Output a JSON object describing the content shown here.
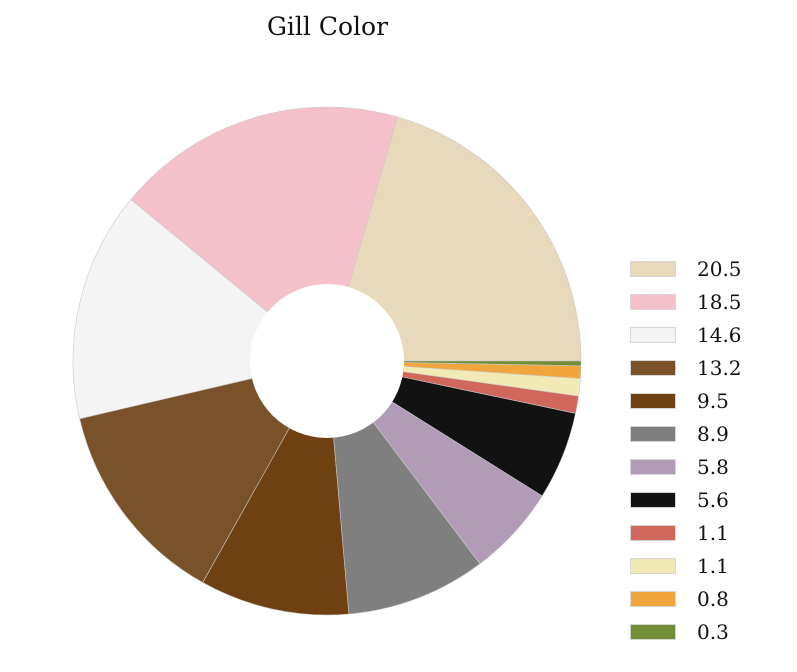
{
  "chart_data": {
    "type": "pie",
    "title": "Gill Color",
    "style": "donut",
    "start_angle_deg": 0,
    "direction": "counterclockwise",
    "legend_position": "right",
    "slices": [
      {
        "label": "20.5",
        "value": 20.5,
        "color": "#e8d9bd"
      },
      {
        "label": "18.5",
        "value": 18.5,
        "color": "#f4c1cb"
      },
      {
        "label": "14.6",
        "value": 14.6,
        "color": "#f4f4f4"
      },
      {
        "label": "13.2",
        "value": 13.2,
        "color": "#7a5229"
      },
      {
        "label": "9.5",
        "value": 9.5,
        "color": "#6e4012"
      },
      {
        "label": "8.9",
        "value": 8.9,
        "color": "#7f7f7f"
      },
      {
        "label": "5.8",
        "value": 5.8,
        "color": "#b29bb7"
      },
      {
        "label": "5.6",
        "value": 5.6,
        "color": "#121212"
      },
      {
        "label": "1.1",
        "value": 1.1,
        "color": "#d1665a"
      },
      {
        "label": "1.1",
        "value": 1.1,
        "color": "#f2eab5"
      },
      {
        "label": "0.8",
        "value": 0.8,
        "color": "#f0a63c"
      },
      {
        "label": "0.3",
        "value": 0.3,
        "color": "#718d36"
      }
    ]
  }
}
